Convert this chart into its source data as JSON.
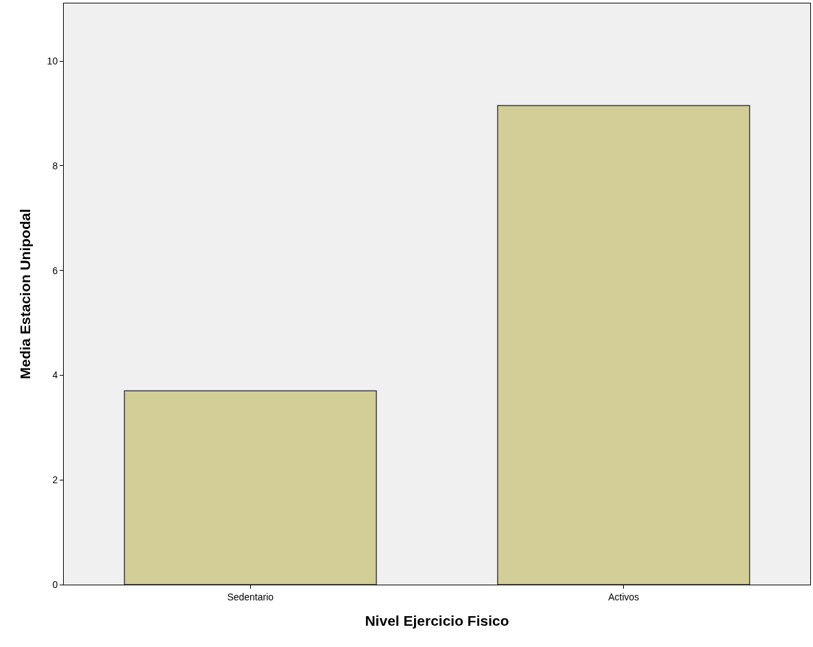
{
  "chart_data": {
    "type": "bar",
    "xlabel": "Nivel Ejercicio Fisico",
    "ylabel": "Media Estacion Unipodal",
    "categories": [
      "Sedentario",
      "Activos"
    ],
    "values": [
      3.7,
      9.15
    ],
    "color": "#d3cd98",
    "ylim": [
      0,
      11.1
    ],
    "yticks": [
      0,
      2,
      4,
      6,
      8,
      10
    ],
    "grid": false,
    "legend": false
  }
}
